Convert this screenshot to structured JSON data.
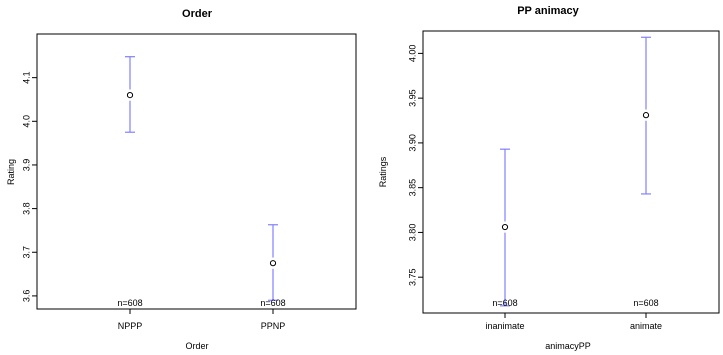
{
  "chart_data": [
    {
      "type": "scatter",
      "title": "Order",
      "xlabel": "Order",
      "ylabel": "Rating",
      "categories": [
        "NPPP",
        "PPNP"
      ],
      "values": [
        4.06,
        3.675
      ],
      "lower": [
        3.975,
        3.59
      ],
      "upper": [
        4.148,
        3.763
      ],
      "n_labels": [
        "n=608",
        "n=608"
      ],
      "ylim": [
        3.57,
        4.2
      ],
      "yticks": [
        3.6,
        3.7,
        3.8,
        3.9,
        4.0,
        4.1
      ],
      "ytick_labels": [
        "3.6",
        "3.7",
        "3.8",
        "3.9",
        "4.0",
        "4.1"
      ],
      "error_color": "#8080ff"
    },
    {
      "type": "scatter",
      "title": "PP animacy",
      "xlabel": "animacyPP",
      "ylabel": "Ratings",
      "categories": [
        "inanimate",
        "animate"
      ],
      "values": [
        3.806,
        3.931
      ],
      "lower": [
        3.718,
        3.843
      ],
      "upper": [
        3.893,
        4.018
      ],
      "n_labels": [
        "n=608",
        "n=608"
      ],
      "ylim": [
        3.71,
        4.025
      ],
      "yticks": [
        3.75,
        3.8,
        3.85,
        3.9,
        3.95,
        4.0
      ],
      "ytick_labels": [
        "3.75",
        "3.80",
        "3.85",
        "3.90",
        "3.95",
        "4.00"
      ],
      "error_color": "#8080ff"
    }
  ]
}
